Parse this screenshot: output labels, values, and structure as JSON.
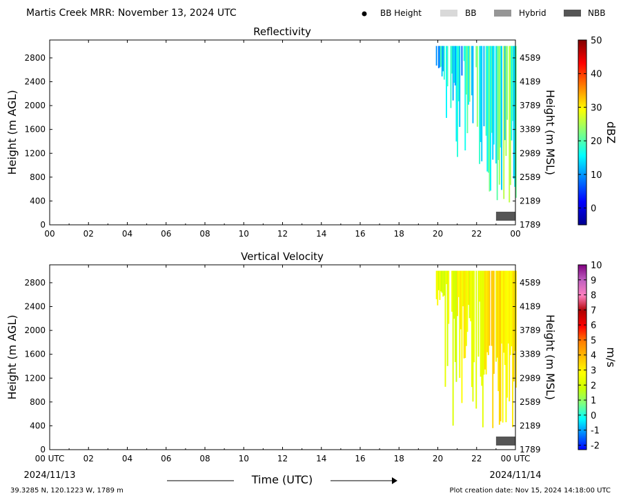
{
  "header": {
    "title": "Martis Creek MRR:  November 13, 2024 UTC",
    "legend": [
      {
        "label": "BB Height",
        "symbol": "dot",
        "color": "#000000"
      },
      {
        "label": "BB",
        "symbol": "box",
        "color": "#d9d9d9"
      },
      {
        "label": "Hybrid",
        "symbol": "box",
        "color": "#969696"
      },
      {
        "label": "NBB",
        "symbol": "box",
        "color": "#555555"
      }
    ]
  },
  "footer": {
    "location": "39.3285 N, 120.1223 W, 1789 m",
    "creation": "Plot creation date: Nov 15, 2024 14:18:00 UTC",
    "time_label": "Time (UTC)",
    "date_start": "2024/11/13",
    "date_end": "2024/11/14"
  },
  "chart_data": [
    {
      "type": "heatmap",
      "title": "Reflectivity",
      "ylabel": "Height (m AGL)",
      "ylabel_right": "Height (m MSL)",
      "xlim": [
        0,
        24
      ],
      "ylim": [
        0,
        3100
      ],
      "x_ticks": [
        "00",
        "02",
        "04",
        "06",
        "08",
        "10",
        "12",
        "14",
        "16",
        "18",
        "20",
        "22",
        "00"
      ],
      "y_ticks": [
        0,
        400,
        800,
        1200,
        1600,
        2000,
        2400,
        2800
      ],
      "y_ticks_right": [
        "1789",
        "2189",
        "2589",
        "2989",
        "3389",
        "3789",
        "4189",
        "4589"
      ],
      "colorbar": {
        "label": "dBZ",
        "range": [
          -5,
          50
        ],
        "ticks": [
          0,
          10,
          20,
          30,
          40,
          50
        ],
        "colors": [
          "#00008f",
          "#0000ff",
          "#0080ff",
          "#00ffff",
          "#80ff80",
          "#ffff00",
          "#ff8000",
          "#ff0000",
          "#800000"
        ]
      },
      "data_extent": {
        "x_start": 19.9,
        "x_end": 24.0,
        "top_m": 3000,
        "lowest_m": 300,
        "typical_value": 10
      },
      "precip_type": [
        {
          "x_start": 23.0,
          "x_end": 24.0,
          "type": "NBB"
        }
      ]
    },
    {
      "type": "heatmap",
      "title": "Vertical Velocity",
      "ylabel": "Height (m AGL)",
      "ylabel_right": "Height (m MSL)",
      "xlabel": "Time (UTC)",
      "xlim": [
        0,
        24
      ],
      "ylim": [
        0,
        3100
      ],
      "x_ticks": [
        "00 UTC",
        "02",
        "04",
        "06",
        "08",
        "10",
        "12",
        "14",
        "16",
        "18",
        "20",
        "22",
        "00 UTC"
      ],
      "y_ticks": [
        0,
        400,
        800,
        1200,
        1600,
        2000,
        2400,
        2800
      ],
      "y_ticks_right": [
        "1789",
        "2189",
        "2589",
        "2989",
        "3389",
        "3789",
        "4189",
        "4589"
      ],
      "colorbar": {
        "label": "m/s",
        "range": [
          -2.3,
          10
        ],
        "ticks": [
          -2,
          -1,
          0,
          1,
          2,
          3,
          4,
          5,
          6,
          7,
          8,
          9,
          10
        ],
        "colors": [
          "#0000ff",
          "#0080ff",
          "#00ffff",
          "#80ff80",
          "#ccff00",
          "#ffff00",
          "#ffbf00",
          "#ff8000",
          "#ff0000",
          "#b00000",
          "#ff80c0",
          "#c060c0",
          "#800080"
        ]
      },
      "data_extent": {
        "x_start": 19.9,
        "x_end": 24.0,
        "top_m": 3000,
        "lowest_m": 300,
        "typical_value": 2
      },
      "precip_type": [
        {
          "x_start": 23.0,
          "x_end": 24.0,
          "type": "NBB"
        }
      ]
    }
  ]
}
